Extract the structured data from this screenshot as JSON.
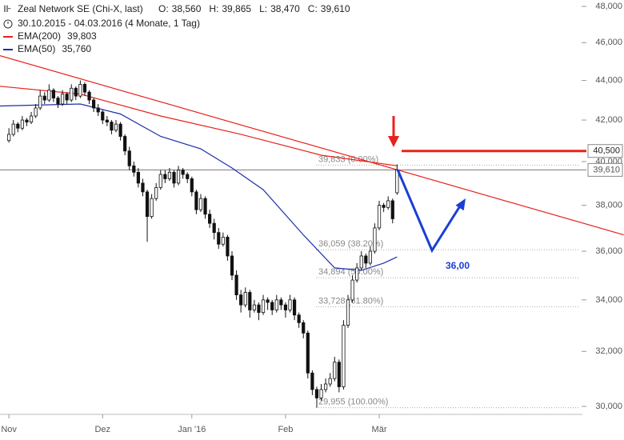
{
  "chart_data": {
    "type": "candlestick",
    "title": "Zeal Network SE (Chi-X, last)",
    "ohlc_labels": [
      {
        "key": "O:",
        "value": "38,560"
      },
      {
        "key": "H:",
        "value": "39,865"
      },
      {
        "key": "L:",
        "value": "38,470"
      },
      {
        "key": "C:",
        "value": "39,610"
      }
    ],
    "subtitle": "30.10.2015 - 04.03.2016 (4 Monate, 1 Tag)",
    "log_scale": true,
    "ylim": [
      30000,
      48000
    ],
    "yticks": [
      {
        "value": 30000,
        "label": "30,000"
      },
      {
        "value": 32000,
        "label": "32,000"
      },
      {
        "value": 34000,
        "label": "34,000"
      },
      {
        "value": 36000,
        "label": "36,000"
      },
      {
        "value": 38000,
        "label": "38,000"
      },
      {
        "value": 40000,
        "label": "40,000"
      },
      {
        "value": 42000,
        "label": "42,000"
      },
      {
        "value": 44000,
        "label": "44,000"
      },
      {
        "value": 46000,
        "label": "46,000"
      },
      {
        "value": 48000,
        "label": "48,000"
      }
    ],
    "xlim": [
      -2,
      128
    ],
    "xticks": [
      {
        "value": 0,
        "label": "Nov"
      },
      {
        "value": 21,
        "label": "Dez"
      },
      {
        "value": 41,
        "label": "Jan '16"
      },
      {
        "value": 62,
        "label": "Feb"
      },
      {
        "value": 83,
        "label": "Mär"
      }
    ],
    "x": [
      0,
      1,
      2,
      3,
      4,
      5,
      6,
      7,
      8,
      9,
      10,
      11,
      12,
      13,
      14,
      15,
      16,
      17,
      18,
      19,
      20,
      21,
      22,
      23,
      24,
      25,
      26,
      27,
      28,
      29,
      30,
      31,
      32,
      33,
      34,
      35,
      36,
      37,
      38,
      39,
      40,
      41,
      42,
      43,
      44,
      45,
      46,
      47,
      48,
      49,
      50,
      51,
      52,
      53,
      54,
      55,
      56,
      57,
      58,
      59,
      60,
      61,
      62,
      63,
      64,
      65,
      66,
      67,
      68,
      69,
      70,
      71,
      72,
      73,
      74,
      75,
      76,
      77,
      78,
      79,
      80,
      81,
      82,
      83,
      84,
      85,
      86,
      87
    ],
    "candles": [
      [
        41000,
        41600,
        40900,
        41300
      ],
      [
        41300,
        42000,
        41200,
        41800
      ],
      [
        41800,
        41900,
        41400,
        41600
      ],
      [
        41600,
        42200,
        41500,
        42000
      ],
      [
        42000,
        42100,
        41700,
        41900
      ],
      [
        41900,
        42400,
        41800,
        42200
      ],
      [
        42200,
        42800,
        42100,
        42600
      ],
      [
        42600,
        43500,
        42500,
        43200
      ],
      [
        43200,
        43400,
        42800,
        43000
      ],
      [
        43000,
        43800,
        42900,
        43500
      ],
      [
        43500,
        43600,
        42900,
        43100
      ],
      [
        43100,
        43200,
        42600,
        42800
      ],
      [
        42800,
        43500,
        42700,
        43300
      ],
      [
        43300,
        43400,
        42800,
        43000
      ],
      [
        43000,
        43800,
        42900,
        43600
      ],
      [
        43600,
        43700,
        43000,
        43200
      ],
      [
        43200,
        44000,
        43100,
        43800
      ],
      [
        43800,
        43900,
        43200,
        43400
      ],
      [
        43400,
        43500,
        42800,
        43000
      ],
      [
        43000,
        43100,
        42400,
        42600
      ],
      [
        42600,
        42800,
        42200,
        42400
      ],
      [
        42400,
        42500,
        41800,
        42000
      ],
      [
        42000,
        42200,
        41700,
        41900
      ],
      [
        41900,
        42000,
        41300,
        41500
      ],
      [
        41500,
        42000,
        41400,
        41800
      ],
      [
        41800,
        41900,
        41000,
        41200
      ],
      [
        41200,
        41300,
        40300,
        40500
      ],
      [
        40500,
        40700,
        39600,
        39800
      ],
      [
        39800,
        40000,
        39300,
        39500
      ],
      [
        39500,
        39700,
        38800,
        39000
      ],
      [
        39000,
        39200,
        38400,
        38600
      ],
      [
        38600,
        38700,
        36400,
        37500
      ],
      [
        37500,
        38500,
        37400,
        38300
      ],
      [
        38300,
        39000,
        38200,
        38800
      ],
      [
        38800,
        39600,
        38700,
        39400
      ],
      [
        39400,
        39600,
        39000,
        39200
      ],
      [
        39200,
        39700,
        39100,
        39500
      ],
      [
        39500,
        39600,
        38800,
        39000
      ],
      [
        39000,
        39800,
        38900,
        39600
      ],
      [
        39600,
        39700,
        39200,
        39400
      ],
      [
        39400,
        39500,
        39000,
        39200
      ],
      [
        39200,
        39300,
        38400,
        38600
      ],
      [
        38600,
        38700,
        37600,
        37800
      ],
      [
        37800,
        38500,
        37700,
        38300
      ],
      [
        38300,
        38400,
        37400,
        37600
      ],
      [
        37600,
        37800,
        37000,
        37200
      ],
      [
        37200,
        37400,
        36500,
        36800
      ],
      [
        36800,
        37000,
        36100,
        36300
      ],
      [
        36300,
        36800,
        36200,
        36600
      ],
      [
        36600,
        36700,
        35600,
        35800
      ],
      [
        35800,
        36000,
        34800,
        35000
      ],
      [
        35000,
        35200,
        34000,
        34200
      ],
      [
        34200,
        34400,
        33500,
        33800
      ],
      [
        33800,
        34500,
        33700,
        34300
      ],
      [
        34300,
        34400,
        33300,
        33600
      ],
      [
        33600,
        34000,
        33500,
        33800
      ],
      [
        33800,
        33900,
        33200,
        33500
      ],
      [
        33500,
        34200,
        33400,
        34000
      ],
      [
        34000,
        34100,
        33600,
        33900
      ],
      [
        33900,
        34000,
        33400,
        33600
      ],
      [
        33600,
        34200,
        33500,
        34000
      ],
      [
        34000,
        34100,
        33600,
        33800
      ],
      [
        33800,
        33900,
        33300,
        33600
      ],
      [
        33600,
        34200,
        33500,
        34000
      ],
      [
        34000,
        34100,
        33200,
        33400
      ],
      [
        33400,
        33500,
        32900,
        33100
      ],
      [
        33100,
        33200,
        32500,
        32700
      ],
      [
        32700,
        32800,
        31000,
        31200
      ],
      [
        31200,
        31300,
        30400,
        30600
      ],
      [
        30600,
        30700,
        29955,
        30300
      ],
      [
        30300,
        30800,
        30200,
        30600
      ],
      [
        30600,
        31000,
        30500,
        30800
      ],
      [
        30800,
        31200,
        30700,
        31000
      ],
      [
        31000,
        31800,
        30900,
        31600
      ],
      [
        31600,
        31700,
        30500,
        30700
      ],
      [
        30700,
        33200,
        30600,
        33000
      ],
      [
        33000,
        34200,
        32900,
        34000
      ],
      [
        34000,
        35000,
        33900,
        34800
      ],
      [
        34800,
        35500,
        34700,
        35300
      ],
      [
        35300,
        36000,
        35200,
        35800
      ],
      [
        35800,
        35900,
        35300,
        35500
      ],
      [
        35500,
        36200,
        35400,
        36000
      ],
      [
        36000,
        37200,
        35900,
        37000
      ],
      [
        37000,
        38200,
        36900,
        38000
      ],
      [
        38000,
        38100,
        37700,
        37900
      ],
      [
        37900,
        38400,
        37800,
        38200
      ],
      [
        38200,
        38300,
        37200,
        37400
      ],
      [
        38560,
        39865,
        38470,
        39610
      ]
    ],
    "series": [
      {
        "name": "EMA(200)",
        "last_label": "39,803",
        "color": "#e8221c",
        "x": [
          -2,
          16,
          34,
          52,
          70,
          87
        ],
        "values": [
          43700,
          43300,
          42200,
          41300,
          40300,
          39803
        ]
      },
      {
        "name": "EMA(50)",
        "last_label": "35,760",
        "color": "#1d2fa8",
        "x": [
          -2,
          16,
          25,
          34,
          43,
          50,
          57,
          66,
          73,
          79,
          84,
          87
        ],
        "values": [
          42700,
          42800,
          42300,
          41200,
          40600,
          39700,
          38700,
          36700,
          35300,
          35200,
          35500,
          35760
        ]
      }
    ],
    "trendline": {
      "color": "#e8221c",
      "x": [
        -2,
        137.8
      ],
      "values": [
        45300,
        36700
      ]
    },
    "levels": [
      {
        "value": 39833,
        "label": "39,833 (0.00%)"
      },
      {
        "value": 36059,
        "label": "36,059 (38.20%)"
      },
      {
        "value": 34894,
        "label": "34,894 (50.00%)"
      },
      {
        "value": 33728,
        "label": "33,728 (61.80%)"
      },
      {
        "value": 29955,
        "label": "29,955 (100.00%)"
      }
    ],
    "last_price": {
      "value": 39610,
      "label": "39,610"
    },
    "target_line": {
      "value": 40500,
      "label": "40,500",
      "color": "#e8221c"
    },
    "annotation": "36,00"
  }
}
